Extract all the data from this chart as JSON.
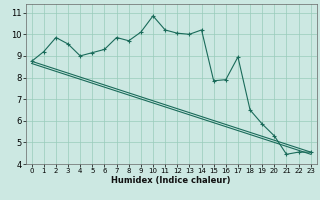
{
  "title": "",
  "xlabel": "Humidex (Indice chaleur)",
  "ylabel": "",
  "bg_color": "#cce8e2",
  "grid_color": "#99ccbb",
  "line_color": "#1a6b5a",
  "xlim": [
    -0.5,
    23.5
  ],
  "ylim": [
    4,
    11.4
  ],
  "yticks": [
    4,
    5,
    6,
    7,
    8,
    9,
    10,
    11
  ],
  "xticks": [
    0,
    1,
    2,
    3,
    4,
    5,
    6,
    7,
    8,
    9,
    10,
    11,
    12,
    13,
    14,
    15,
    16,
    17,
    18,
    19,
    20,
    21,
    22,
    23
  ],
  "jagged_x": [
    0,
    1,
    2,
    3,
    4,
    5,
    6,
    7,
    8,
    9,
    10,
    11,
    12,
    13,
    14,
    15,
    16,
    17,
    18,
    19,
    20,
    21,
    22,
    23
  ],
  "jagged_y": [
    8.75,
    9.2,
    9.85,
    9.55,
    9.0,
    9.15,
    9.3,
    9.85,
    9.7,
    10.1,
    10.85,
    10.2,
    10.05,
    10.0,
    10.2,
    7.85,
    7.9,
    8.95,
    6.5,
    5.85,
    5.3,
    4.45,
    4.55,
    4.55
  ],
  "line2_x": [
    0,
    23
  ],
  "line2_y": [
    8.75,
    4.55
  ],
  "line3_x": [
    0,
    23
  ],
  "line3_y": [
    8.65,
    4.45
  ],
  "xlabel_fontsize": 6,
  "tick_fontsize": 5,
  "ytick_fontsize": 6
}
